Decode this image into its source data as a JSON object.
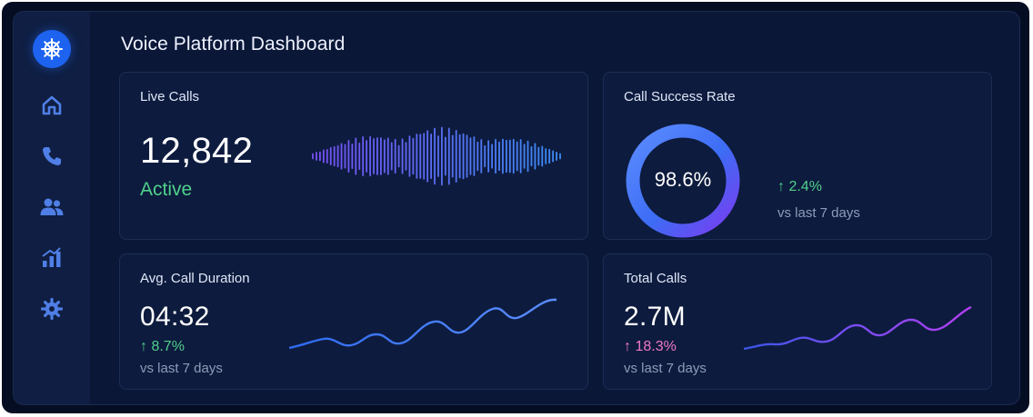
{
  "app": {
    "title": "Voice Platform Dashboard",
    "logo_icon": "ship-wheel-icon",
    "accent": "#1d63f0"
  },
  "sidebar": {
    "items": [
      {
        "name": "home",
        "icon": "home-icon"
      },
      {
        "name": "calls",
        "icon": "phone-icon"
      },
      {
        "name": "users",
        "icon": "users-icon"
      },
      {
        "name": "analytics",
        "icon": "bar-chart-icon"
      },
      {
        "name": "settings",
        "icon": "gear-icon"
      }
    ],
    "icon_color": "#4f7fe6"
  },
  "cards": {
    "live_calls": {
      "label": "Live Calls",
      "value": "12,842",
      "status": "Active",
      "status_color": "#4fd08a"
    },
    "success_rate": {
      "label": "Call Success Rate",
      "value": "98.6%",
      "percent": 98.6,
      "delta": "↑ 2.4%",
      "sub": "vs last 7 days"
    },
    "avg_duration": {
      "label": "Avg. Call Duration",
      "value": "04:32",
      "delta": "↑ 8.7%",
      "sub": "vs last 7 days"
    },
    "total_calls": {
      "label": "Total Calls",
      "value": "2.7M",
      "delta": "↑ 18.3%",
      "sub": "vs last 7 days"
    }
  }
}
